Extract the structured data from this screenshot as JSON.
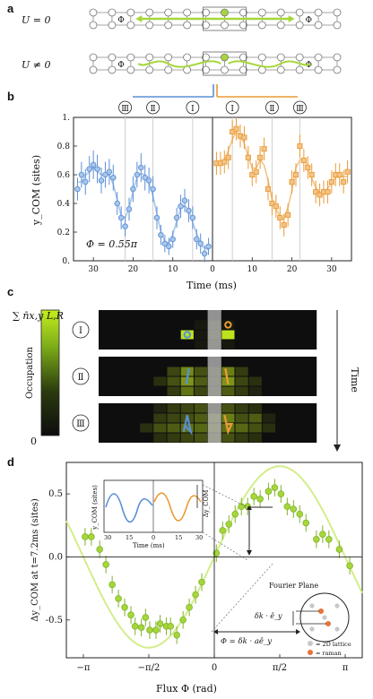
{
  "colors": {
    "blue": "#5b8fd6",
    "blue_light": "#a9c6ea",
    "orange": "#eb9a34",
    "orange_light": "#f2c489",
    "green": "#a6d63a",
    "green_light": "#d3ed8a",
    "raman": "#e8733a",
    "lattice": "#c8c8c8"
  },
  "panel_a": {
    "label": "a",
    "row1_label": "U = 0",
    "row2_label": "U ≠ 0",
    "phi_symbol": "Φ"
  },
  "chart_data": [
    {
      "type": "scatter",
      "panel": "b",
      "ylabel": "y_COM (sites)",
      "xlabel": "Time (ms)",
      "ylim": [
        0,
        1
      ],
      "yticks": [
        0,
        0.2,
        0.4,
        0.6,
        0.8,
        1
      ],
      "ytick_labels": [
        "0.",
        "0.2",
        "0.4",
        "0.6",
        "0.8",
        "1."
      ],
      "xticks_left": [
        30,
        20,
        10,
        0
      ],
      "xticks_right": [
        10,
        20,
        30
      ],
      "annotation": "Φ = 0.55π",
      "markers": [
        "Ⅲ",
        "Ⅱ",
        "Ⅰ",
        "Ⅰ",
        "Ⅱ",
        "Ⅲ"
      ],
      "series": [
        {
          "t": [
            1,
            2,
            3,
            4,
            5,
            6,
            7,
            8,
            9,
            10,
            11,
            12,
            13,
            14,
            15,
            16,
            17,
            18,
            19,
            20,
            21,
            22,
            23,
            24,
            25,
            26,
            27,
            28,
            29,
            30,
            31,
            32,
            33,
            34
          ],
          "values": [
            0.1,
            0.05,
            0.12,
            0.15,
            0.3,
            0.35,
            0.42,
            0.38,
            0.3,
            0.15,
            0.1,
            0.12,
            0.18,
            0.3,
            0.5,
            0.56,
            0.58,
            0.65,
            0.6,
            0.5,
            0.36,
            0.24,
            0.3,
            0.4,
            0.58,
            0.62,
            0.6,
            0.56,
            0.64,
            0.67,
            0.64,
            0.55,
            0.6,
            0.5
          ],
          "errors": [
            0.06,
            0.06,
            0.07,
            0.07,
            0.08,
            0.08,
            0.08,
            0.08,
            0.07,
            0.06,
            0.06,
            0.06,
            0.07,
            0.08,
            0.09,
            0.09,
            0.09,
            0.1,
            0.09,
            0.09,
            0.08,
            0.07,
            0.08,
            0.08,
            0.09,
            0.09,
            0.09,
            0.09,
            0.1,
            0.1,
            0.09,
            0.09,
            0.09,
            0.08
          ]
        },
        {
          "t": [
            1,
            2,
            3,
            4,
            5,
            6,
            7,
            8,
            9,
            10,
            11,
            12,
            13,
            14,
            15,
            16,
            17,
            18,
            19,
            20,
            21,
            22,
            23,
            24,
            25,
            26,
            27,
            28,
            29,
            30,
            31,
            32,
            33,
            34
          ],
          "values": [
            0.68,
            0.68,
            0.69,
            0.72,
            0.9,
            0.92,
            0.87,
            0.86,
            0.72,
            0.6,
            0.62,
            0.72,
            0.78,
            0.5,
            0.4,
            0.38,
            0.3,
            0.25,
            0.32,
            0.55,
            0.6,
            0.8,
            0.7,
            0.65,
            0.6,
            0.48,
            0.46,
            0.48,
            0.48,
            0.55,
            0.6,
            0.6,
            0.55,
            0.62
          ],
          "errors": [
            0.08,
            0.08,
            0.08,
            0.08,
            0.08,
            0.08,
            0.08,
            0.08,
            0.08,
            0.08,
            0.08,
            0.08,
            0.08,
            0.08,
            0.08,
            0.08,
            0.08,
            0.08,
            0.08,
            0.08,
            0.08,
            0.08,
            0.08,
            0.08,
            0.08,
            0.08,
            0.08,
            0.08,
            0.08,
            0.08,
            0.08,
            0.08,
            0.08,
            0.08
          ]
        }
      ]
    },
    {
      "type": "heatmap",
      "panel": "c",
      "colorbar_label": "Occupation",
      "colorbar_top": "∑ n̄x,y L,R",
      "colorbar_min": "0",
      "time_label": "Time",
      "rows": [
        {
          "roman": "Ⅰ",
          "cells": [
            [
              0,
              0,
              0,
              0,
              0,
              0,
              0,
              0,
              0,
              0,
              0,
              0,
              0,
              0,
              0,
              0
            ],
            [
              0,
              0,
              0,
              0,
              0,
              0,
              0,
              0.05,
              0.08,
              0.05,
              0,
              0,
              0,
              0,
              0,
              0
            ],
            [
              0,
              0,
              0,
              0,
              0,
              0,
              0.95,
              0.05,
              0.1,
              0.95,
              0,
              0,
              0,
              0,
              0,
              0
            ],
            [
              0,
              0,
              0,
              0,
              0,
              0,
              0,
              0.05,
              0.05,
              0.05,
              0,
              0,
              0,
              0,
              0,
              0
            ]
          ]
        },
        {
          "roman": "Ⅱ",
          "cells": [
            [
              0,
              0,
              0,
              0,
              0,
              0,
              0,
              0,
              0,
              0,
              0,
              0,
              0,
              0,
              0,
              0
            ],
            [
              0,
              0,
              0,
              0,
              0,
              0.25,
              0.55,
              0.3,
              0.1,
              0.5,
              0.2,
              0,
              0,
              0,
              0,
              0
            ],
            [
              0,
              0,
              0,
              0,
              0.15,
              0.3,
              0.6,
              0.35,
              0.1,
              0.6,
              0.25,
              0.15,
              0,
              0,
              0,
              0
            ],
            [
              0,
              0,
              0,
              0,
              0,
              0.2,
              0.45,
              0.25,
              0.1,
              0.35,
              0.2,
              0.1,
              0,
              0,
              0,
              0
            ]
          ]
        },
        {
          "roman": "Ⅲ",
          "cells": [
            [
              0,
              0,
              0,
              0,
              0.1,
              0.2,
              0.25,
              0.3,
              0.05,
              0.3,
              0.2,
              0.15,
              0,
              0,
              0,
              0
            ],
            [
              0,
              0,
              0,
              0,
              0.2,
              0.25,
              0.3,
              0.35,
              0.2,
              0.5,
              0.3,
              0.35,
              0.1,
              0,
              0,
              0
            ],
            [
              0,
              0,
              0,
              0.15,
              0.3,
              0.35,
              0.45,
              0.4,
              0.2,
              0.45,
              0.4,
              0.3,
              0.15,
              0,
              0,
              0
            ],
            [
              0,
              0,
              0,
              0,
              0.15,
              0.2,
              0.25,
              0.3,
              0.15,
              0.3,
              0.2,
              0.15,
              0,
              0,
              0,
              0
            ]
          ]
        }
      ]
    },
    {
      "type": "scatter",
      "panel": "d",
      "ylabel": "Δy_COM at t=7.2ms (sites)",
      "xlabel": "Flux Φ (rad)",
      "xticks": [
        "−π",
        "−π/2",
        "0",
        "π/2",
        "π"
      ],
      "yticks": [
        "-0.5",
        "0.0",
        "0.5"
      ],
      "ylim": [
        -0.8,
        0.75
      ],
      "xlim": [
        -3.55,
        3.55
      ],
      "points": [
        [
          -3.1,
          0.16
        ],
        [
          -2.95,
          0.16
        ],
        [
          -2.75,
          0.06
        ],
        [
          -2.6,
          -0.06
        ],
        [
          -2.45,
          -0.22
        ],
        [
          -2.3,
          -0.33
        ],
        [
          -2.15,
          -0.4
        ],
        [
          -2.0,
          -0.46
        ],
        [
          -1.9,
          -0.55
        ],
        [
          -1.75,
          -0.56
        ],
        [
          -1.65,
          -0.48
        ],
        [
          -1.55,
          -0.58
        ],
        [
          -1.4,
          -0.58
        ],
        [
          -1.3,
          -0.53
        ],
        [
          -1.15,
          -0.55
        ],
        [
          -1.05,
          -0.55
        ],
        [
          -0.9,
          -0.62
        ],
        [
          -0.75,
          -0.5
        ],
        [
          -0.6,
          -0.4
        ],
        [
          -0.45,
          -0.3
        ],
        [
          -0.3,
          -0.2
        ],
        [
          0.05,
          0.03
        ],
        [
          0.2,
          0.21
        ],
        [
          0.35,
          0.26
        ],
        [
          0.5,
          0.34
        ],
        [
          0.65,
          0.4
        ],
        [
          0.8,
          0.4
        ],
        [
          0.95,
          0.48
        ],
        [
          1.1,
          0.46
        ],
        [
          1.3,
          0.52
        ],
        [
          1.45,
          0.55
        ],
        [
          1.6,
          0.5
        ],
        [
          1.75,
          0.4
        ],
        [
          1.9,
          0.38
        ],
        [
          2.05,
          0.34
        ],
        [
          2.2,
          0.27
        ],
        [
          2.45,
          0.14
        ],
        [
          2.6,
          0.18
        ],
        [
          2.75,
          0.14
        ],
        [
          3.0,
          0.06
        ],
        [
          3.25,
          -0.07
        ]
      ],
      "inset": {
        "ylabel": "y_COM (sites)",
        "xlabel": "Time (ms)",
        "xticks": [
          "30",
          "15",
          "0",
          "15",
          "30"
        ],
        "arrow_label": "Δy_COM"
      },
      "fourier": {
        "title": "Fourier Plane",
        "dk_label": "δk · ê_y",
        "phi_eq": "Φ = δk · aê_y",
        "legend_lattice": "= 2D lattice",
        "legend_raman": "= raman"
      }
    }
  ]
}
